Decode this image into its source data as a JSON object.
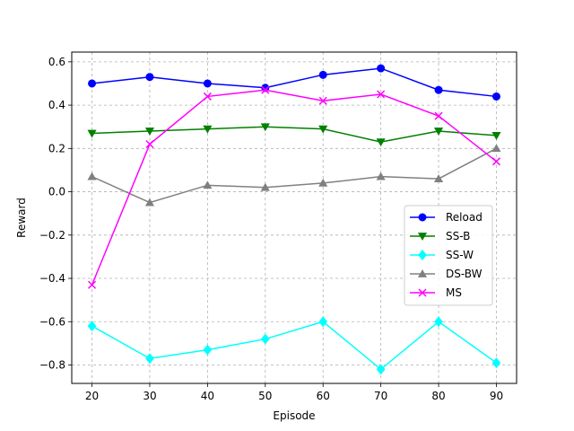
{
  "chart_data": {
    "type": "line",
    "xlabel": "Episode",
    "ylabel": "Reward",
    "x": [
      20,
      30,
      40,
      50,
      60,
      70,
      80,
      90
    ],
    "xticks": [
      "20",
      "30",
      "40",
      "50",
      "60",
      "70",
      "80",
      "90"
    ],
    "yticks": [
      "−0.8",
      "−0.6",
      "−0.4",
      "−0.2",
      "0.0",
      "0.2",
      "0.4",
      "0.6"
    ],
    "ylim": [
      -0.885,
      0.645
    ],
    "xlim": [
      16.5,
      93.5
    ],
    "grid": true,
    "legend_position": "center-right",
    "series": [
      {
        "name": "Reload",
        "color": "#0000ff",
        "marker": "circle",
        "values": [
          0.5,
          0.53,
          0.5,
          0.48,
          0.54,
          0.57,
          0.47,
          0.44
        ]
      },
      {
        "name": "SS-B",
        "color": "#008000",
        "marker": "triangle-down",
        "values": [
          0.27,
          0.28,
          0.29,
          0.3,
          0.29,
          0.23,
          0.28,
          0.26
        ]
      },
      {
        "name": "SS-W",
        "color": "#00ffff",
        "marker": "diamond",
        "values": [
          -0.62,
          -0.77,
          -0.73,
          -0.68,
          -0.6,
          -0.82,
          -0.6,
          -0.79
        ]
      },
      {
        "name": "DS-BW",
        "color": "#808080",
        "marker": "triangle-up",
        "values": [
          0.07,
          -0.05,
          0.03,
          0.02,
          0.04,
          0.07,
          0.06,
          0.2
        ]
      },
      {
        "name": "MS",
        "color": "#ff00ff",
        "marker": "x",
        "values": [
          -0.43,
          0.22,
          0.44,
          0.47,
          0.42,
          0.45,
          0.35,
          0.14
        ]
      }
    ]
  }
}
